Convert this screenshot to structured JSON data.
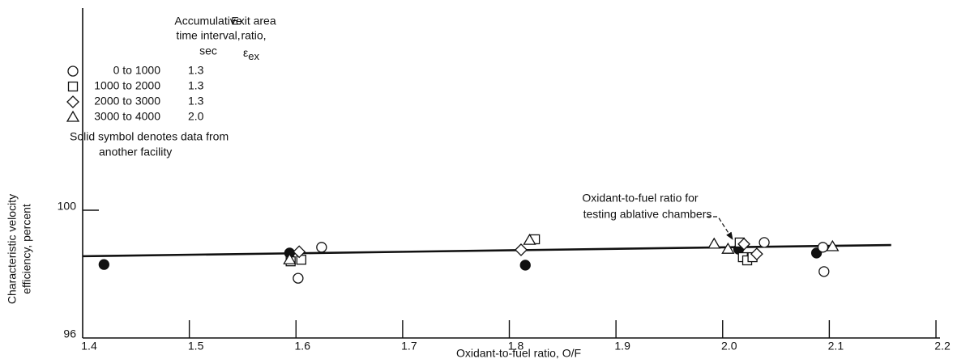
{
  "chart_data": {
    "type": "scatter",
    "x_label": "Oxidant-to-fuel ratio, O/F",
    "y_label": [
      "Characteristic velocity",
      "efficiency, percent"
    ],
    "xlim": [
      1.4,
      2.2
    ],
    "ylim": [
      96,
      106
    ],
    "xticks": [
      1.4,
      1.5,
      1.6,
      1.7,
      1.8,
      1.9,
      {
        "value": 2,
        "label": "2.0"
      },
      2.1,
      2.2
    ],
    "yticks": [
      96,
      100
    ],
    "legend_headers": {
      "interval": [
        "Accumulative",
        "time interval,",
        "sec"
      ],
      "ratio": [
        "Exit area",
        "ratio,"
      ],
      "ratio_symbol": "ε",
      "ratio_subscript": "ex"
    },
    "series": [
      {
        "name": "0 to 1000",
        "exit_area_ratio": "1.3",
        "marker": "circle",
        "color": "#111",
        "x": [
          1.42,
          1.594,
          1.815,
          2.015,
          2.088,
          1.602,
          1.624,
          2.039,
          2.094,
          2.095
        ],
        "values": [
          98.3,
          98.66,
          98.28,
          98.78,
          98.66,
          97.87,
          98.84,
          98.99,
          98.84,
          98.08
        ],
        "filled": [
          true,
          true,
          true,
          true,
          true,
          false,
          false,
          false,
          false,
          false
        ]
      },
      {
        "name": "1000 to 2000",
        "exit_area_ratio": "1.3",
        "marker": "square",
        "color": "#111",
        "x": [
          1.595,
          1.605,
          1.824,
          2.016,
          2.019,
          2.023,
          2.028
        ],
        "values": [
          98.4,
          98.45,
          99.09,
          98.99,
          98.53,
          98.43,
          98.53
        ]
      },
      {
        "name": "2000 to 3000",
        "exit_area_ratio": "1.3",
        "marker": "diamond",
        "color": "#111",
        "x": [
          1.603,
          1.811,
          2.02,
          2.032
        ],
        "values": [
          98.7,
          98.76,
          98.94,
          98.63
        ]
      },
      {
        "name": "3000 to 4000",
        "exit_area_ratio": "2.0",
        "marker": "triangle",
        "color": "#111",
        "x": [
          1.594,
          1.819,
          1.992,
          2.005,
          2.103
        ],
        "values": [
          98.45,
          99.06,
          98.94,
          98.78,
          98.86
        ]
      }
    ],
    "fit_line": {
      "x": [
        1.4,
        2.158
      ],
      "values": [
        98.56,
        98.91
      ]
    },
    "note": [
      "Solid symbol denotes data from",
      "another facility"
    ],
    "annotation": [
      "Oxidant-to-fuel ratio for",
      "testing ablative chambers"
    ]
  }
}
